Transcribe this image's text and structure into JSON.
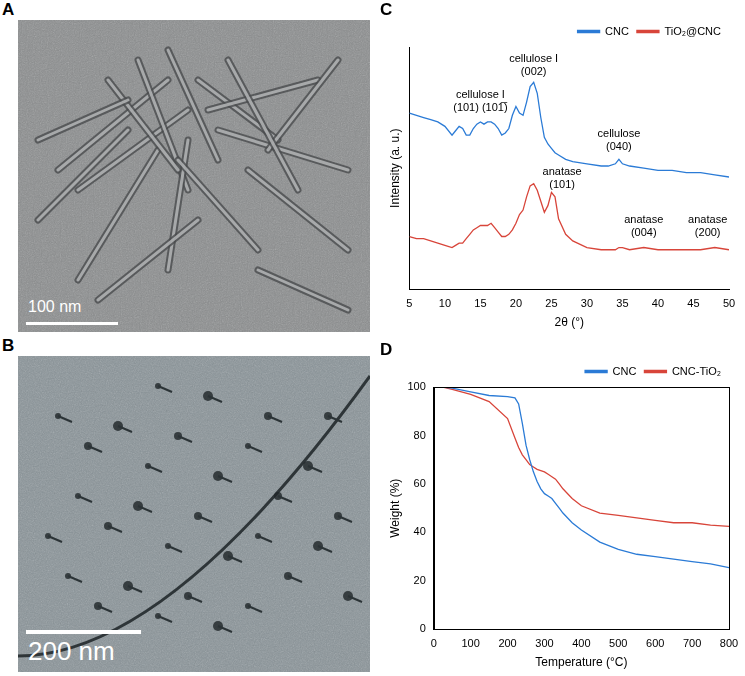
{
  "panels": [
    {
      "label": "A",
      "type": "image",
      "scale_bar": "100 nm"
    },
    {
      "label": "B",
      "type": "image",
      "scale_bar": "200 nm"
    }
  ],
  "chart_data": [
    {
      "label": "C",
      "type": "line",
      "x_label": "2θ (°)",
      "y_label": "Intensity (a. u.)",
      "x": [
        5,
        6,
        7,
        8,
        9,
        10,
        11,
        11.5,
        12,
        12.5,
        13,
        13.5,
        14,
        14.5,
        15,
        15.5,
        16,
        16.5,
        17,
        17.5,
        18,
        18.5,
        19,
        19.5,
        20,
        20.5,
        21,
        21.5,
        22,
        22.5,
        23,
        23.5,
        24,
        24.5,
        25,
        25.5,
        26,
        27,
        28,
        30,
        32,
        33,
        34,
        34.5,
        35,
        36,
        38,
        40,
        42,
        44,
        46,
        48,
        50
      ],
      "xlim": [
        5,
        50
      ],
      "xticks": [
        5,
        10,
        15,
        20,
        25,
        30,
        35,
        40,
        45,
        50
      ],
      "ylim": [
        0,
        110
      ],
      "tick_labels": "x",
      "grid": false,
      "legend": "upper right",
      "series": [
        {
          "name": "CNC",
          "color": "#2b7bd6",
          "values": [
            80,
            79,
            78,
            77,
            76,
            74,
            70,
            72,
            74,
            73,
            70,
            70,
            73,
            75,
            76,
            75,
            76,
            76,
            75,
            73,
            70,
            71,
            73,
            79,
            83,
            80,
            79,
            85,
            92,
            94,
            89,
            78,
            69,
            66,
            64,
            62,
            61,
            59,
            58,
            57,
            56,
            56,
            57,
            59,
            57,
            56,
            55,
            54,
            54,
            53,
            53,
            52,
            51
          ]
        },
        {
          "name": "TiO₂@CNC",
          "color": "#d8453a",
          "values": [
            24,
            23,
            23,
            22,
            21,
            20,
            19,
            20,
            21,
            21,
            23,
            25,
            27,
            28,
            29,
            29,
            29,
            30,
            28,
            26,
            24,
            24,
            25,
            27,
            30,
            34,
            36,
            42,
            47,
            48,
            45,
            40,
            35,
            38,
            44,
            42,
            32,
            25,
            22,
            19,
            18,
            18,
            18,
            19,
            19,
            18,
            19,
            18,
            18,
            18,
            18,
            19,
            18
          ]
        }
      ],
      "annotations": [
        {
          "text": [
            "cellulose I",
            "(101) (101̅)"
          ],
          "x": 15,
          "y": 80
        },
        {
          "text": [
            "cellulose I",
            "(002)"
          ],
          "x": 22.5,
          "y": 96
        },
        {
          "text": [
            "cellulose",
            "(040)"
          ],
          "x": 34.5,
          "y": 62
        },
        {
          "text": [
            "anatase",
            "(101)"
          ],
          "x": 26.5,
          "y": 45
        },
        {
          "text": [
            "anatase",
            "(004)"
          ],
          "x": 38,
          "y": 23
        },
        {
          "text": [
            "anatase",
            "(200)"
          ],
          "x": 47,
          "y": 23
        }
      ]
    },
    {
      "label": "D",
      "type": "line",
      "x_label": "Temperature (°C)",
      "y_label": "Weight (%)",
      "x": [
        25,
        50,
        100,
        150,
        200,
        220,
        230,
        240,
        250,
        260,
        270,
        280,
        290,
        300,
        310,
        320,
        330,
        340,
        350,
        375,
        400,
        450,
        500,
        550,
        600,
        650,
        700,
        750,
        800
      ],
      "xlim": [
        0,
        800
      ],
      "xticks": [
        0,
        100,
        200,
        300,
        400,
        500,
        600,
        700,
        800
      ],
      "ylim": [
        0,
        100
      ],
      "yticks": [
        0,
        20,
        40,
        60,
        80,
        100
      ],
      "grid": false,
      "legend": "upper right",
      "series": [
        {
          "name": "CNC",
          "color": "#2b7bd6",
          "values": [
            100,
            99.5,
            98,
            96.5,
            96,
            95.5,
            93,
            85,
            76,
            70,
            65,
            61,
            58,
            56,
            55,
            54,
            52,
            50,
            48,
            44,
            41,
            36,
            33,
            31,
            30,
            29,
            28,
            27,
            25.5
          ]
        },
        {
          "name": "CNC-TiO₂",
          "color": "#d8453a",
          "values": [
            100,
            99,
            97,
            94,
            87,
            79,
            75,
            72,
            70,
            68,
            67,
            66,
            65.5,
            65,
            64,
            63,
            62,
            60,
            58,
            54,
            51,
            48,
            47,
            46,
            45,
            44,
            44,
            43,
            42.5
          ]
        }
      ]
    }
  ]
}
